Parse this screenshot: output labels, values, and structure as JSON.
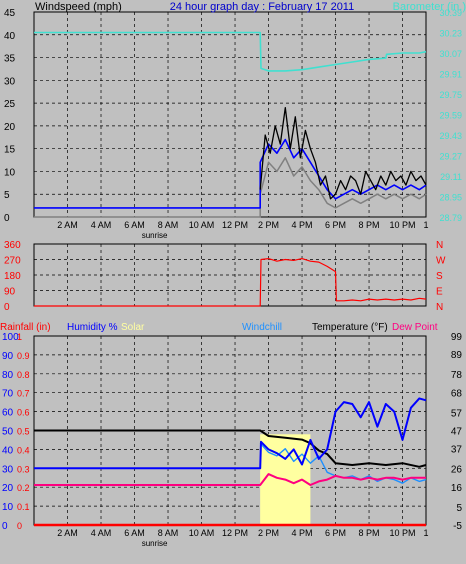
{
  "header": {
    "title": "24 hour graph day : February 17 2011",
    "left_label": "Windspeed (mph)",
    "right_label": "Barometer (in.)"
  },
  "x_axis": {
    "ticks": [
      "2 AM",
      "4 AM",
      "6 AM",
      "8 AM",
      "10 AM",
      "12 PM",
      "2 PM",
      "4 PM",
      "6 PM",
      "8 PM",
      "10 PM",
      "1"
    ],
    "sunrise_label": "sunrise"
  },
  "colors": {
    "background": "#c0c0c0",
    "wind": "#000000",
    "gust": "#0000ff",
    "wind_avg": "#808080",
    "barometer": "#40e0d0",
    "direction": "#ff0000",
    "rain": "#ff0000",
    "humidity": "#0000ff",
    "solar": "#ffffa0",
    "windchill": "#1e90ff",
    "temperature": "#000000",
    "dewpoint": "#ff0080"
  },
  "bottom_labels": {
    "rainfall": "Rainfall (in)",
    "humidity": "Humidity %",
    "solar": "Solar",
    "windchill": "Windchill",
    "temperature": "Temperature (°F)",
    "dewpoint": "Dew Point"
  },
  "direction_labels": [
    "N",
    "W",
    "S",
    "E",
    "N"
  ],
  "chart_data": [
    {
      "type": "line",
      "x_unit": "hour of day",
      "ylim": [
        0,
        45
      ],
      "yticks": [
        0,
        5,
        10,
        15,
        20,
        25,
        30,
        35,
        40,
        45
      ],
      "y2lim": [
        28.79,
        30.39
      ],
      "y2ticks": [
        "28.79",
        "28.95",
        "29.11",
        "29.27",
        "29.43",
        "29.59",
        "29.75",
        "29.91",
        "30.07",
        "30.23",
        "30.39"
      ],
      "grid": true,
      "series": [
        {
          "key": "wind_avg",
          "axis": "left",
          "x": [
            0,
            13.5,
            13.5,
            14,
            14.5,
            15,
            15.5,
            16,
            16.5,
            17,
            17.5,
            18,
            18.5,
            19,
            19.5,
            20,
            20.5,
            21,
            21.5,
            22,
            22.5,
            23,
            23.4
          ],
          "y": [
            0,
            0,
            5,
            12,
            10,
            13,
            9,
            11,
            8,
            6,
            3,
            2,
            3,
            4,
            3,
            4,
            5,
            4,
            5,
            4,
            5,
            4,
            5
          ]
        },
        {
          "key": "gust",
          "axis": "left",
          "x": [
            0,
            13.5,
            13.5,
            14,
            14.5,
            15,
            15.5,
            16,
            16.5,
            17,
            17.5,
            18,
            18.5,
            19,
            19.5,
            20,
            20.5,
            21,
            21.5,
            22,
            22.5,
            23,
            23.4
          ],
          "y": [
            2,
            2,
            12,
            16,
            14,
            17,
            13,
            15,
            12,
            9,
            6,
            4,
            5,
            6,
            5,
            6,
            7,
            6,
            7,
            6,
            7,
            6,
            7
          ]
        },
        {
          "key": "wind",
          "axis": "left",
          "x": [
            13.5,
            13.8,
            14.1,
            14.4,
            14.7,
            15,
            15.3,
            15.6,
            15.9,
            16.2,
            16.5,
            16.8,
            17.1,
            17.4,
            17.7,
            18,
            18.3,
            18.6,
            18.9,
            19.2,
            19.5,
            19.8,
            20.1,
            20.4,
            20.7,
            21,
            21.3,
            21.6,
            21.9,
            22.2,
            22.5,
            22.8,
            23.1,
            23.4
          ],
          "y": [
            6,
            18,
            14,
            20,
            16,
            24,
            15,
            22,
            13,
            19,
            15,
            12,
            7,
            9,
            4,
            5,
            8,
            6,
            9,
            8,
            5,
            10,
            8,
            6,
            9,
            7,
            10,
            8,
            9,
            7,
            10,
            8,
            9,
            7
          ]
        },
        {
          "key": "barometer",
          "axis": "right",
          "x": [
            0,
            13.5,
            13.55,
            14,
            15,
            16,
            17,
            18,
            19,
            20,
            21,
            21.05,
            22,
            23,
            23.4
          ],
          "y": [
            30.23,
            30.23,
            29.95,
            29.93,
            29.93,
            29.94,
            29.96,
            29.98,
            30.0,
            30.02,
            30.03,
            30.06,
            30.07,
            30.07,
            30.08
          ]
        }
      ]
    },
    {
      "type": "line",
      "name": "wind direction",
      "ylim": [
        0,
        360
      ],
      "yticks": [
        0,
        90,
        180,
        270,
        360
      ],
      "x": [
        0,
        13.5,
        13.55,
        14,
        14.5,
        15,
        15.5,
        16,
        16.5,
        17,
        17.5,
        18,
        18.05,
        18.5,
        19,
        19.5,
        20,
        20.5,
        21,
        21.5,
        22,
        22.5,
        23,
        23.4
      ],
      "y": [
        0,
        0,
        270,
        275,
        260,
        270,
        265,
        275,
        260,
        255,
        230,
        200,
        30,
        30,
        35,
        30,
        40,
        35,
        40,
        35,
        40,
        35,
        45,
        40
      ],
      "grid": true
    },
    {
      "type": "line",
      "left_axes": {
        "humidity_ticks": [
          0,
          10,
          20,
          30,
          40,
          50,
          60,
          70,
          80,
          90,
          100
        ],
        "rain_ticks": [
          "0",
          "0.1",
          "0.2",
          "0.3",
          "0.4",
          "0.5",
          "0.6",
          "0.7",
          "0.8",
          "0.9",
          "1"
        ]
      },
      "right_axis": {
        "ylim": [
          -5,
          99
        ],
        "ticks": [
          -5,
          5,
          16,
          26,
          37,
          47,
          57,
          68,
          78,
          89,
          99
        ]
      },
      "solar_band": [
        13.5,
        16.5
      ],
      "series": [
        {
          "key": "temperature",
          "axis": "temp",
          "x": [
            0,
            13.5,
            14,
            15,
            16,
            16.5,
            17,
            17.5,
            18,
            19,
            20,
            21,
            22,
            23,
            23.4
          ],
          "y": [
            47,
            47,
            44,
            43,
            42,
            40,
            36,
            34,
            29,
            28,
            29,
            28,
            29,
            27,
            28
          ]
        },
        {
          "key": "humidity",
          "axis": "humidity",
          "x": [
            0,
            13.5,
            13.55,
            14,
            14.5,
            15,
            15.5,
            16,
            16.5,
            17,
            17.5,
            18,
            18.5,
            19,
            19.5,
            20,
            20.5,
            21,
            21.5,
            22,
            22.5,
            23,
            23.4
          ],
          "y": [
            30,
            30,
            44,
            40,
            38,
            35,
            40,
            32,
            45,
            35,
            40,
            60,
            65,
            64,
            57,
            65,
            52,
            64,
            60,
            45,
            62,
            67,
            66
          ]
        },
        {
          "key": "windchill",
          "axis": "temp",
          "x": [
            13.5,
            14,
            14.5,
            15,
            15.5,
            16,
            16.5,
            17,
            17.5,
            18,
            18.5,
            19,
            19.5,
            20,
            20.5,
            21,
            21.5,
            22,
            22.5,
            23,
            23.4
          ],
          "y": [
            40,
            35,
            33,
            37,
            30,
            34,
            29,
            33,
            24,
            22,
            21,
            22,
            20,
            22,
            19,
            21,
            20,
            18,
            21,
            19,
            20
          ]
        },
        {
          "key": "dewpoint",
          "axis": "temp",
          "x": [
            0,
            13.5,
            14,
            14.5,
            15,
            15.5,
            16,
            16.5,
            17,
            17.5,
            18,
            18.5,
            19,
            19.5,
            20,
            20.5,
            21,
            21.5,
            22,
            22.5,
            23,
            23.4
          ],
          "y": [
            17,
            17,
            23,
            21,
            20,
            18,
            20,
            17,
            19,
            20,
            22,
            21,
            21,
            20,
            21,
            20,
            21,
            21,
            20,
            21,
            21,
            21
          ]
        },
        {
          "key": "rain",
          "axis": "rain",
          "x": [
            0,
            23.4
          ],
          "y": [
            0,
            0
          ]
        }
      ]
    }
  ]
}
